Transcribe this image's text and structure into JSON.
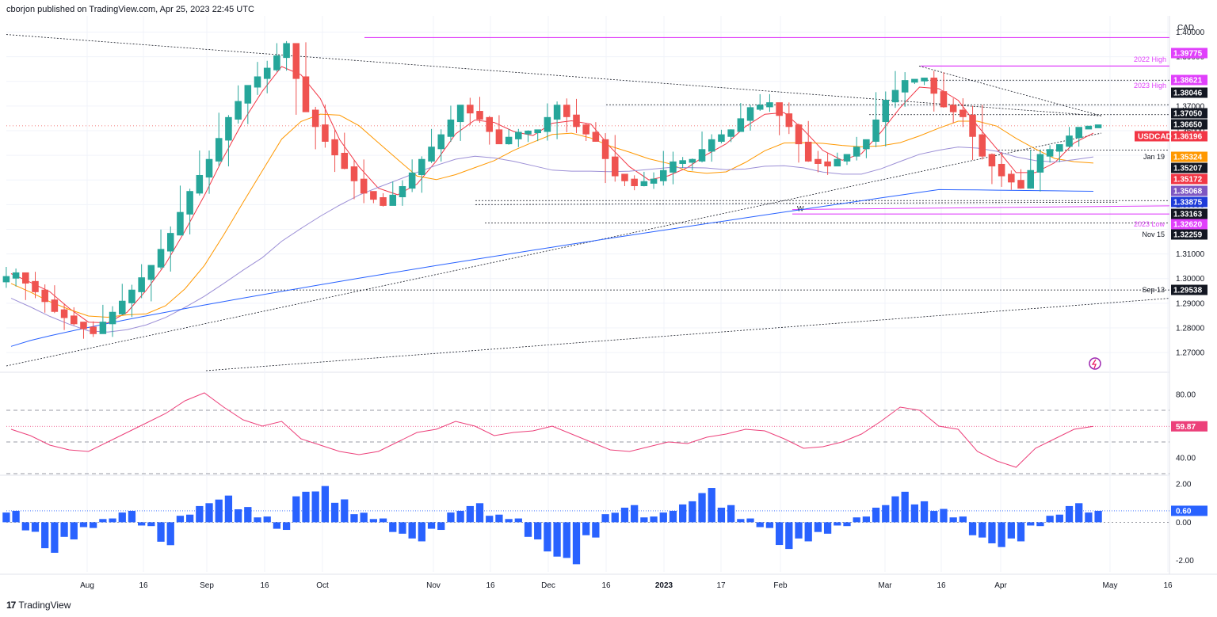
{
  "header": {
    "published": "cborjon published on TradingView.com, Apr 25, 2023 22:45 UTC"
  },
  "footer": {
    "brand": "TradingView",
    "logo": "17"
  },
  "colors": {
    "up": "#26a69a",
    "down": "#ef5350",
    "magenta": "#e040fb",
    "sma20": "#f23645",
    "sma50": "#ff9800",
    "sma100": "#9c8fd6",
    "sma200": "#2962ff",
    "rsi": "#ec407a",
    "hist": "#2962ff"
  },
  "chart_data": [
    {
      "type": "candlestick",
      "symbol": "USDCAD",
      "currency": "CAD",
      "ylim": [
        1.262,
        1.404
      ],
      "y_ticks": [
        "1.40000",
        "1.39000",
        "1.38000",
        "1.37000",
        "1.36000",
        "1.35000",
        "1.34000",
        "1.33000",
        "1.32000",
        "1.31000",
        "1.30000",
        "1.29000",
        "1.28000",
        "1.27000"
      ],
      "x_labels": [
        "Aug",
        "16",
        "Sep",
        "16",
        "Oct",
        "Nov",
        "16",
        "Dec",
        "16",
        "2023",
        "17",
        "Feb",
        "Mar",
        "16",
        "Apr",
        "May",
        "16"
      ],
      "price_tags": [
        {
          "label": "",
          "value": "1.39775",
          "style": "magenta"
        },
        {
          "label": "2022 High",
          "value": "",
          "style": "magenta-text"
        },
        {
          "label": "",
          "value": "1.38621",
          "style": "magenta"
        },
        {
          "label": "2023 High",
          "value": "",
          "style": "magenta-text"
        },
        {
          "label": "",
          "value": "1.38046",
          "style": "dark"
        },
        {
          "label": "",
          "value": "1.37050",
          "style": "dark"
        },
        {
          "label": "",
          "value": "1.36650",
          "style": "dark"
        },
        {
          "label": "USDCAD",
          "value": "1.36196",
          "style": "red"
        },
        {
          "label": "Jan 19",
          "value": "1.35324",
          "style": "orange"
        },
        {
          "label": "",
          "value": "1.35207",
          "style": "dark"
        },
        {
          "label": "",
          "value": "1.35172",
          "style": "red"
        },
        {
          "label": "",
          "value": "1.35068",
          "style": "purple"
        },
        {
          "label": "",
          "value": "1.33875",
          "style": "blue"
        },
        {
          "label": "",
          "value": "1.33163",
          "style": "dark"
        },
        {
          "label": "2023 Low",
          "value": "1.32620",
          "style": "magenta"
        },
        {
          "label": "Nov 15",
          "value": "1.32259",
          "style": "dark"
        },
        {
          "label": "Sep 13",
          "value": "1.29538",
          "style": "dark"
        }
      ],
      "annotations": [
        "W"
      ],
      "closes": [
        1.302,
        1.295,
        1.287,
        1.282,
        1.278,
        1.286,
        1.295,
        1.305,
        1.318,
        1.335,
        1.348,
        1.365,
        1.378,
        1.385,
        1.395,
        1.368,
        1.356,
        1.345,
        1.335,
        1.33,
        1.337,
        1.348,
        1.358,
        1.37,
        1.365,
        1.355,
        1.359,
        1.36,
        1.37,
        1.362,
        1.356,
        1.342,
        1.338,
        1.34,
        1.347,
        1.348,
        1.356,
        1.36,
        1.369,
        1.371,
        1.362,
        1.348,
        1.346,
        1.35,
        1.356,
        1.372,
        1.38,
        1.381,
        1.37,
        1.366,
        1.35,
        1.342,
        1.337,
        1.35,
        1.354,
        1.361,
        1.362
      ]
    },
    {
      "type": "line",
      "name": "RSI",
      "ylim": [
        30,
        90
      ],
      "y_ticks": [
        "80.00",
        "40.00"
      ],
      "levels": [
        70,
        50,
        30
      ],
      "last": "59.87",
      "values": [
        58,
        54,
        48,
        45,
        44,
        50,
        56,
        62,
        68,
        76,
        81,
        72,
        64,
        60,
        63,
        52,
        48,
        44,
        42,
        44,
        50,
        56,
        58,
        63,
        60,
        54,
        56,
        57,
        60,
        55,
        50,
        45,
        44,
        47,
        50,
        49,
        53,
        55,
        58,
        57,
        52,
        46,
        47,
        50,
        55,
        63,
        72,
        70,
        60,
        58,
        44,
        38,
        34,
        46,
        52,
        58,
        59.87
      ]
    },
    {
      "type": "bar",
      "name": "Histogram",
      "ylim": [
        -2.6,
        2.3
      ],
      "y_ticks": [
        "2.00",
        "0.00",
        "-2.00"
      ],
      "last": "0.60",
      "values": [
        0.6,
        -0.5,
        -1.6,
        -0.9,
        -0.3,
        0.2,
        0.6,
        -0.2,
        -1.2,
        0.4,
        1.0,
        1.4,
        0.8,
        0.3,
        -0.4,
        1.6,
        1.9,
        1.2,
        0.5,
        0.2,
        -0.6,
        -1.0,
        -0.4,
        0.6,
        1.0,
        0.4,
        0.2,
        -0.9,
        -1.8,
        -2.2,
        -0.8,
        0.5,
        0.9,
        0.3,
        0.6,
        1.1,
        1.8,
        0.9,
        0.2,
        -0.3,
        -1.4,
        -1.0,
        -0.6,
        -0.2,
        0.3,
        0.9,
        1.6,
        1.1,
        0.7,
        0.3,
        -0.8,
        -1.3,
        -1.0,
        -0.2,
        0.4,
        1.0,
        0.6
      ]
    }
  ]
}
